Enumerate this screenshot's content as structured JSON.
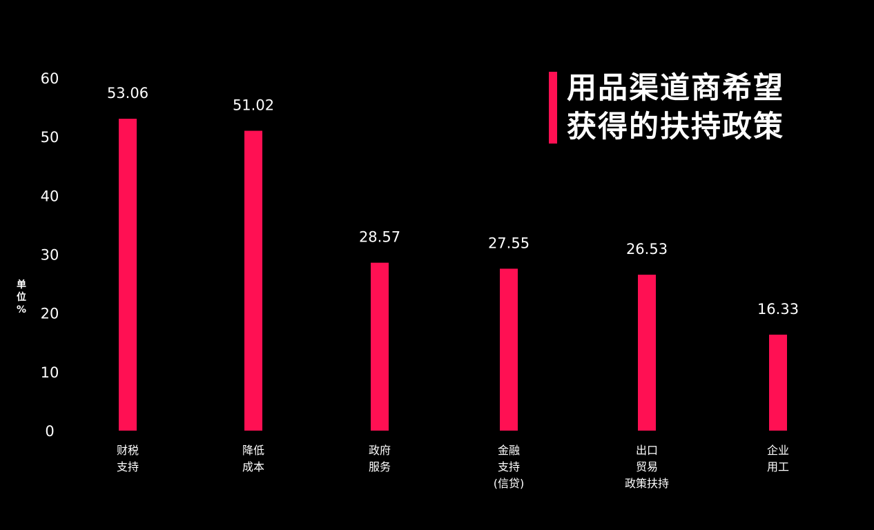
{
  "chart_data": {
    "type": "bar",
    "title_lines": [
      "用品渠道商希望",
      "获得的扶持政策"
    ],
    "ylabel_chars": [
      "单",
      "位",
      "%"
    ],
    "ylim": [
      0,
      60
    ],
    "yticks": [
      "0",
      "10",
      "20",
      "30",
      "40",
      "50",
      "60"
    ],
    "categories": [
      [
        "财税",
        "支持"
      ],
      [
        "降低",
        "成本"
      ],
      [
        "政府",
        "服务"
      ],
      [
        "金融",
        "支持",
        "(信贷)"
      ],
      [
        "出口",
        "贸易",
        "政策扶持"
      ],
      [
        "企业",
        "用工"
      ]
    ],
    "values": [
      53.06,
      51.02,
      28.57,
      27.55,
      26.53,
      16.33
    ],
    "value_labels": [
      "53.06",
      "51.02",
      "28.57",
      "27.55",
      "26.53",
      "16.33"
    ],
    "grid": false,
    "colors": {
      "bar": "#ff1053",
      "accent": "#ff1053",
      "background": "#000000",
      "text": "#ffffff"
    }
  }
}
